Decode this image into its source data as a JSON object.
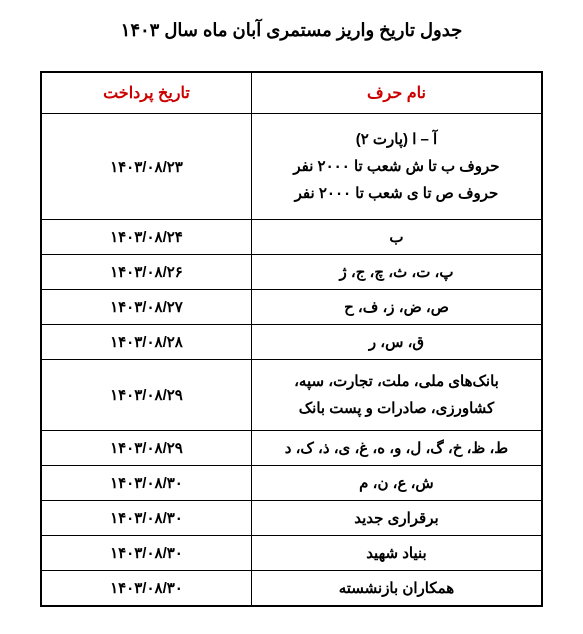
{
  "title": "جدول تاریخ واریز مستمری آبان ماه سال ۱۴۰۳",
  "headers": {
    "name": "نام حرف",
    "date": "تاریخ پرداخت"
  },
  "rows": [
    {
      "name_lines": [
        "آ – ا (پارت ۲)",
        "حروف ب تا ش شعب تا ۲۰۰۰ نفر",
        "حروف ص تا ی شعب تا ۲۰۰۰ نفر"
      ],
      "date": "۱۴۰۳/۰۸/۲۳"
    },
    {
      "name_lines": [
        "ب"
      ],
      "date": "۱۴۰۳/۰۸/۲۴"
    },
    {
      "name_lines": [
        "پ، ت، ث، چ، ج، ژ"
      ],
      "date": "۱۴۰۳/۰۸/۲۶"
    },
    {
      "name_lines": [
        "ص، ض، ز، ف، ح"
      ],
      "date": "۱۴۰۳/۰۸/۲۷"
    },
    {
      "name_lines": [
        "ق، س، ر"
      ],
      "date": "۱۴۰۳/۰۸/۲۸"
    },
    {
      "name_lines": [
        "بانک‌های ملی، ملت، تجارت، سپه،",
        "کشاورزی، صادرات و پست بانک"
      ],
      "date": "۱۴۰۳/۰۸/۲۹"
    },
    {
      "name_lines": [
        "ط، ظ، خ، گ، ل، و، ه، غ، ی، ذ، ک، د"
      ],
      "date": "۱۴۰۳/۰۸/۲۹"
    },
    {
      "name_lines": [
        "ش، ع، ن، م"
      ],
      "date": "۱۴۰۳/۰۸/۳۰"
    },
    {
      "name_lines": [
        "برقراری جدید"
      ],
      "date": "۱۴۰۳/۰۸/۳۰"
    },
    {
      "name_lines": [
        "بنیاد شهید"
      ],
      "date": "۱۴۰۳/۰۸/۳۰"
    },
    {
      "name_lines": [
        "همکاران بازنشسته"
      ],
      "date": "۱۴۰۳/۰۸/۳۰"
    }
  ],
  "styling": {
    "header_color": "#cc0000",
    "text_color": "#000000",
    "border_color": "#000000",
    "background_color": "#ffffff",
    "title_fontsize": 18,
    "header_fontsize": 16,
    "cell_fontsize": 15
  }
}
